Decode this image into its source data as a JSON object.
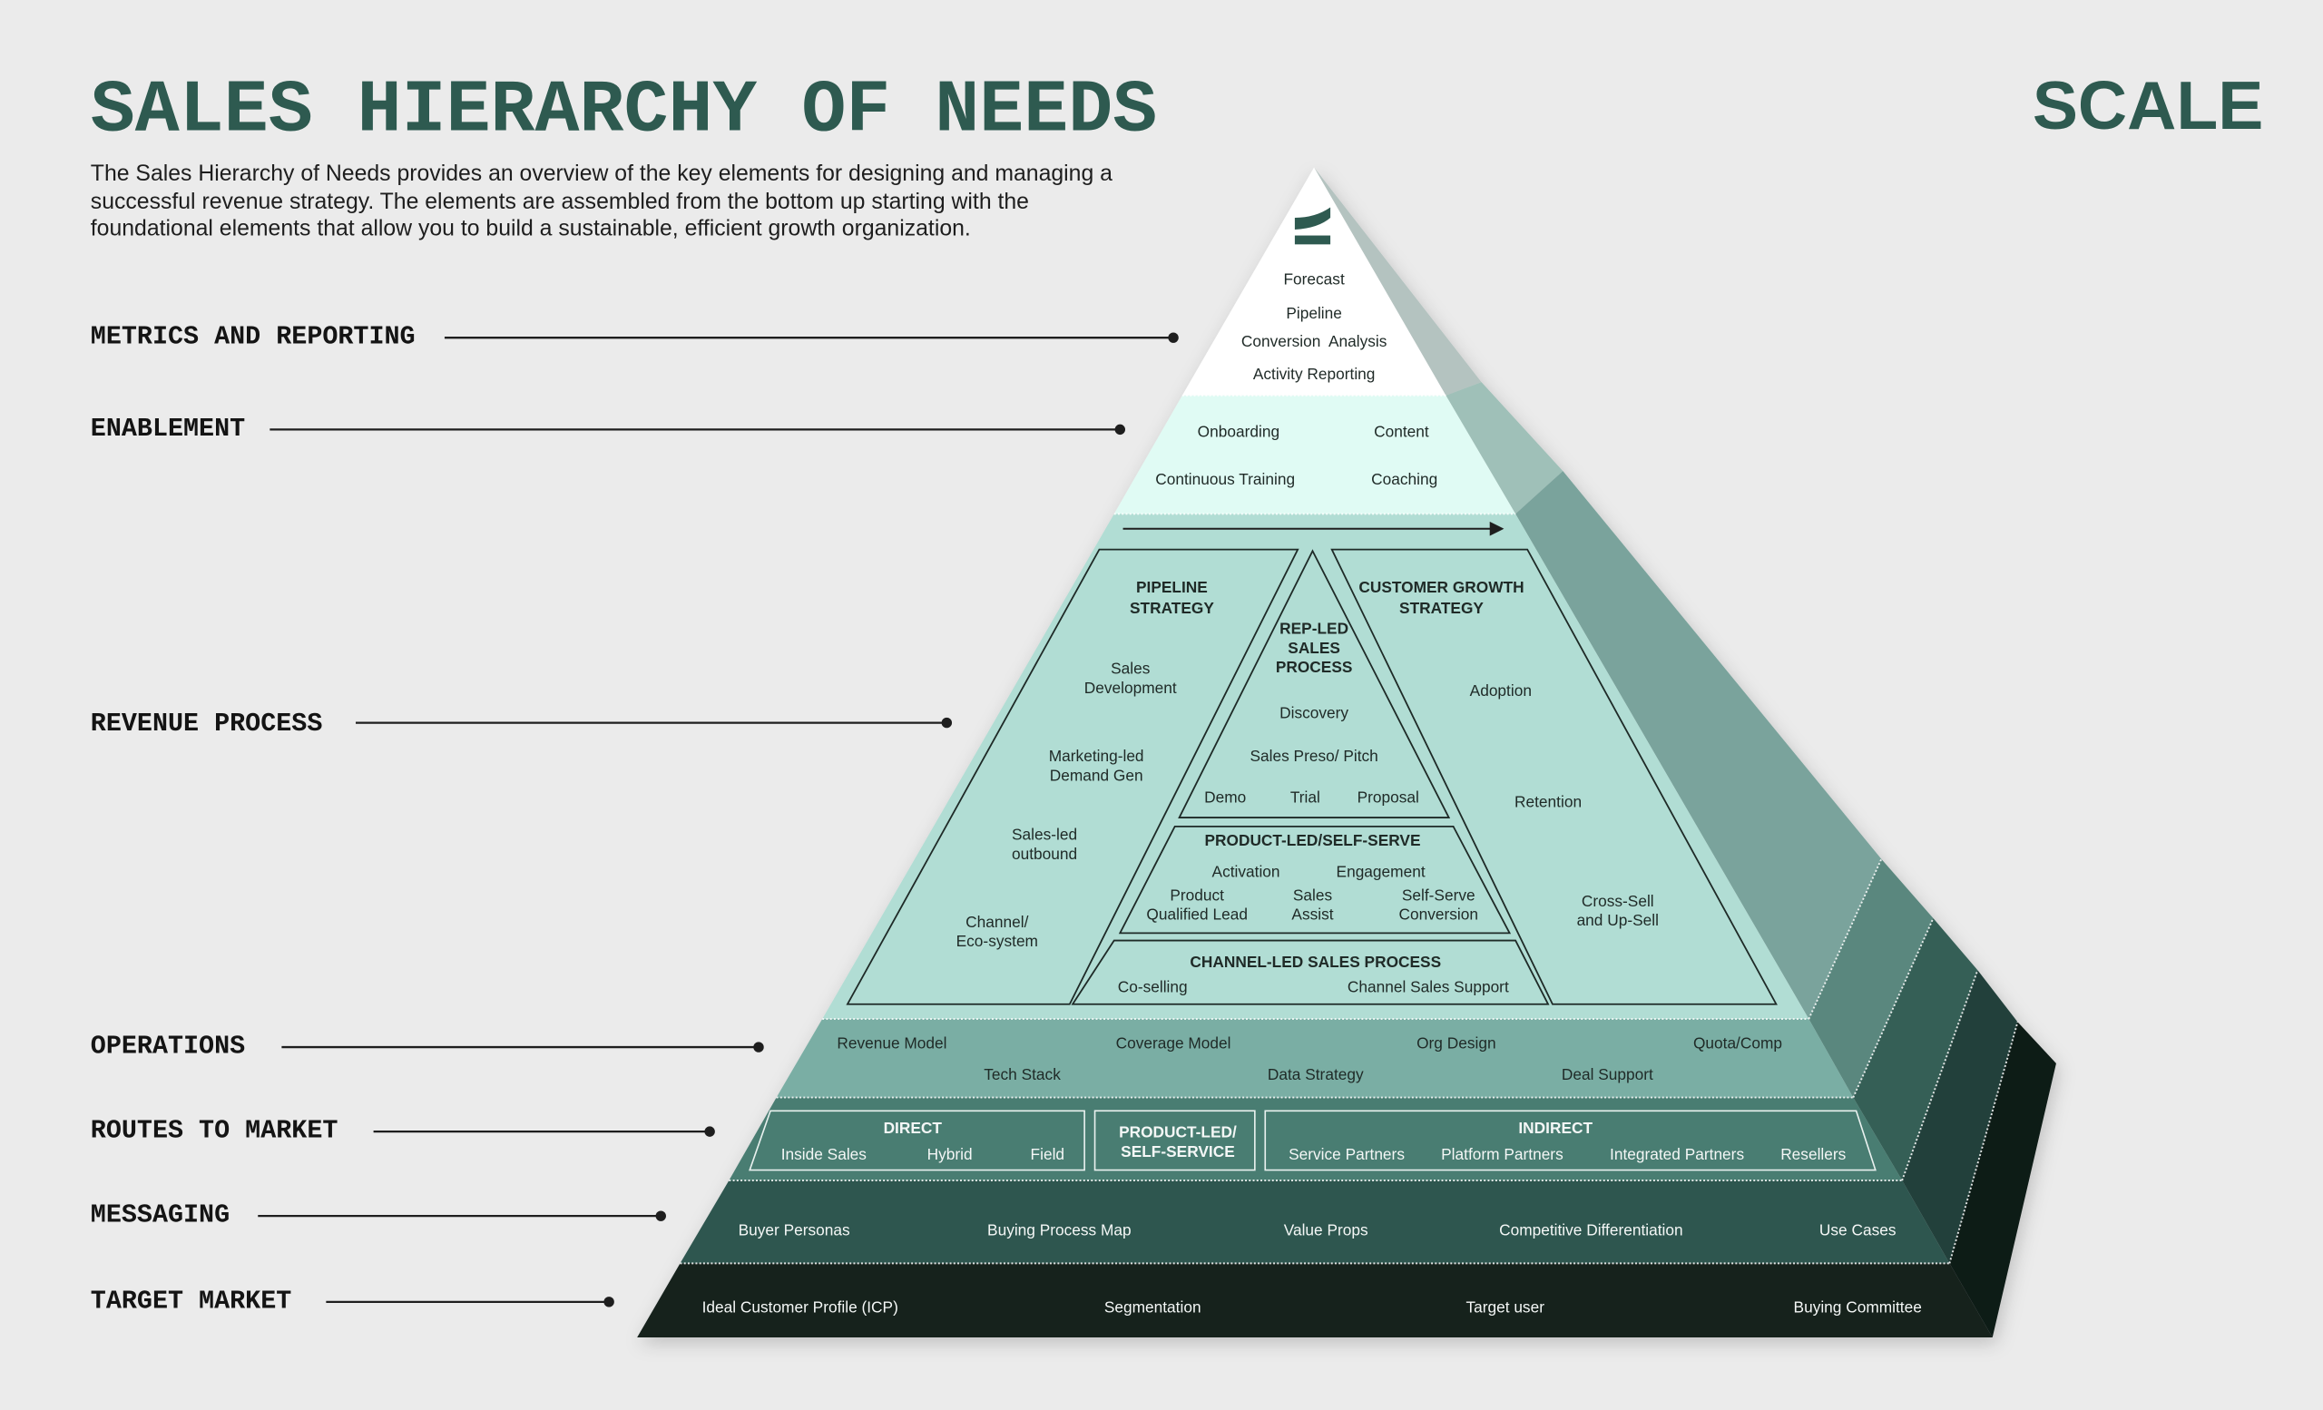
{
  "title": "SALES HIERARCHY OF NEEDS",
  "brand": "SCALE",
  "intro_lines": [
    "The Sales Hierarchy of Needs provides an overview of the key elements for designing and managing a",
    "successful revenue strategy. The elements are assembled from the bottom up starting with the",
    "foundational elements that allow you to build a sustainable, efficient growth organization."
  ],
  "colors": {
    "background": "#ebebeb",
    "brand": "#2e5a50",
    "metrics": "#ffffff",
    "enablement": "#e0fbf4",
    "revenue": "#b1ddd4",
    "operations": "#7aaea4",
    "routes": "#4a7d72",
    "messaging": "#2f5650",
    "target": "#17231f"
  },
  "levels": {
    "metrics": {
      "label": "METRICS AND REPORTING",
      "items": [
        "Forecast",
        "Pipeline",
        "Conversion  Analysis",
        "Activity Reporting"
      ]
    },
    "enablement": {
      "label": "ENABLEMENT",
      "items": [
        "Onboarding",
        "Content",
        "Continuous Training",
        "Coaching"
      ]
    },
    "revenue": {
      "label": "REVENUE PROCESS",
      "pipeline": {
        "title": [
          "PIPELINE",
          "STRATEGY"
        ],
        "items": [
          [
            "Sales",
            "Development"
          ],
          [
            "Marketing-led",
            "Demand Gen"
          ],
          [
            "Sales-led",
            "outbound"
          ],
          [
            "Channel/",
            "Eco-system"
          ]
        ]
      },
      "rep_led": {
        "title": [
          "REP-LED",
          "SALES",
          "PROCESS"
        ],
        "items": [
          "Discovery",
          "Sales Preso/ Pitch",
          "Demo",
          "Trial",
          "Proposal"
        ]
      },
      "product_led": {
        "title": "PRODUCT-LED/SELF-SERVE",
        "items": [
          "Activation",
          "Engagement"
        ],
        "pairs": [
          [
            "Product",
            "Qualified Lead"
          ],
          [
            "Sales",
            "Assist"
          ],
          [
            "Self-Serve",
            "Conversion"
          ]
        ]
      },
      "channel_led": {
        "title": "CHANNEL-LED SALES PROCESS",
        "items": [
          "Co-selling",
          "Channel Sales Support"
        ]
      },
      "customer_growth": {
        "title": [
          "CUSTOMER GROWTH",
          "STRATEGY"
        ],
        "items": [
          "Adoption",
          "Retention"
        ],
        "cross_sell": [
          "Cross-Sell",
          "and Up-Sell"
        ]
      }
    },
    "operations": {
      "label": "OPERATIONS",
      "items": [
        "Revenue Model",
        "Coverage Model",
        "Org Design",
        "Quota/Comp",
        "Tech Stack",
        "Data Strategy",
        "Deal Support"
      ]
    },
    "routes": {
      "label": "ROUTES TO MARKET",
      "direct": {
        "title": "DIRECT",
        "items": [
          "Inside Sales",
          "Hybrid",
          "Field"
        ]
      },
      "product_led": {
        "title": [
          "PRODUCT-LED/",
          "SELF-SERVICE"
        ]
      },
      "indirect": {
        "title": "INDIRECT",
        "items": [
          "Service Partners",
          "Platform Partners",
          "Integrated Partners",
          "Resellers"
        ]
      }
    },
    "messaging": {
      "label": "MESSAGING",
      "items": [
        "Buyer Personas",
        "Buying Process Map",
        "Value Props",
        "Competitive Differentiation",
        "Use Cases"
      ]
    },
    "target": {
      "label": "TARGET MARKET",
      "items": [
        "Ideal Customer Profile (ICP)",
        "Segmentation",
        "Target user",
        "Buying Committee"
      ]
    }
  }
}
